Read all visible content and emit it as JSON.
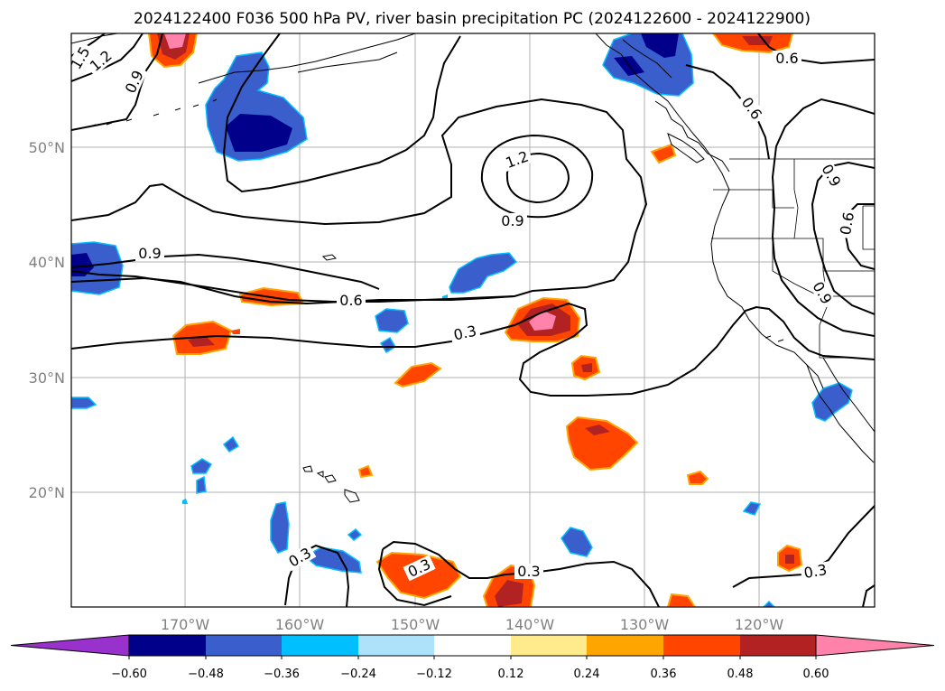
{
  "title": "2024122400 F036 500 hPa PV, river basin precipitation PC (2024122600 - 2024122900)",
  "map": {
    "lon_ticks": [
      "170°W",
      "160°W",
      "150°W",
      "140°W",
      "130°W",
      "120°W"
    ],
    "lat_ticks": [
      "50°N",
      "40°N",
      "30°N",
      "20°N"
    ],
    "gridlines": true
  },
  "pv_contour_labels": [
    "1.5",
    "1.2",
    "0.9",
    "1.2",
    "0.9",
    "0.9",
    "0.6",
    "0.6",
    "0.6",
    "0.3",
    "0.6",
    "0.9",
    "0.9",
    "0.3",
    "0.3",
    "0.3",
    "0.3"
  ],
  "colorbar": {
    "ticks": [
      "−0.60",
      "−0.48",
      "−0.36",
      "−0.24",
      "−0.12",
      "0.12",
      "0.24",
      "0.36",
      "0.48",
      "0.60"
    ],
    "colors": [
      "#9932CC",
      "#00008B",
      "#3A5FCD",
      "#00BFFF",
      "#ADE2FA",
      "#FFFFFF",
      "#FFEB8B",
      "#FFA500",
      "#FF4500",
      "#B22222",
      "#FF82AB"
    ],
    "extend": "both"
  }
}
